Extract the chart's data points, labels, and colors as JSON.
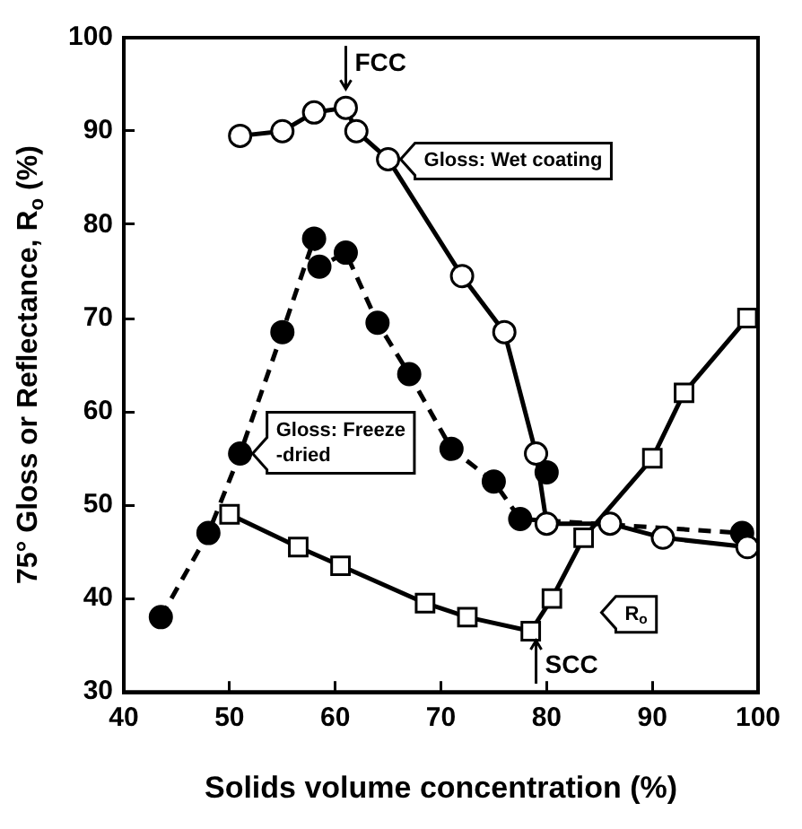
{
  "chart_data": {
    "type": "line",
    "xlabel": "Solids volume concentration (%)",
    "ylabel": "75° Gloss or Reflectance, R$_{o}$ (%)",
    "xlim": [
      40,
      100
    ],
    "xticks": [
      40,
      50,
      60,
      70,
      80,
      90,
      100
    ],
    "ylim": [
      30,
      100
    ],
    "yticks": [
      30,
      40,
      50,
      60,
      70,
      80,
      90,
      100
    ],
    "grid": false,
    "legend": false,
    "series": [
      {
        "name": "Gloss: Wet coating",
        "color": "#000000",
        "marker": "circle",
        "line_style": "solid",
        "x": [
          51,
          55,
          58,
          61,
          62,
          65,
          72,
          76,
          79,
          80,
          86,
          91,
          99
        ],
        "values": [
          89.5,
          90,
          92,
          92.5,
          90,
          87,
          74.5,
          68.5,
          55.5,
          48,
          48,
          46.5,
          45.5
        ]
      },
      {
        "name": "Gloss: Freeze -dried",
        "color": "#000000",
        "marker": "circle",
        "line_style": "dashed",
        "x": [
          43.5,
          48,
          51,
          55,
          58,
          58.5,
          61,
          64,
          67,
          71,
          75,
          77.5,
          98.5
        ],
        "values": [
          38,
          47,
          55.5,
          68.5,
          78.5,
          75.5,
          77,
          69.5,
          64,
          56,
          52.5,
          48.5,
          47
        ]
      },
      {
        "type": "scatter",
        "color": "#000000",
        "marker": "circle",
        "x": [
          80
        ],
        "values": [
          53.5
        ]
      },
      {
        "name": "R$_{o}$",
        "color": "#000000",
        "marker": "square",
        "line_style": "solid",
        "x": [
          50,
          56.5,
          60.5,
          68.5,
          72.5,
          78.5,
          80.5,
          83.5,
          90,
          93,
          99
        ],
        "values": [
          49,
          45.5,
          43.5,
          39.5,
          38,
          36.5,
          40,
          46.5,
          55,
          62,
          70
        ]
      }
    ],
    "annotations": [
      "FCC",
      "SCC"
    ]
  }
}
